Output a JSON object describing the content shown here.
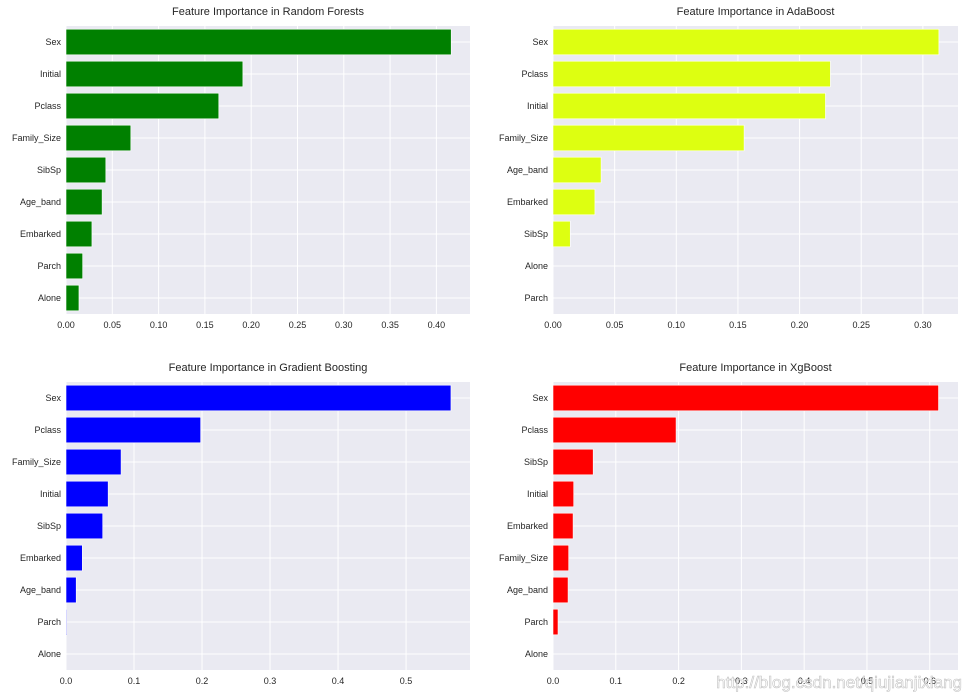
{
  "figure": {
    "watermark": "http://blog.csdn.net/qiujianjixiang"
  },
  "style": {
    "axes_bg": "#EAEAF2",
    "grid_color": "#FFFFFF",
    "text_color": "#262626",
    "bar_edge": "#FFFFFF"
  },
  "chart_data": [
    {
      "type": "bar",
      "orientation": "horizontal",
      "title": "Feature Importance in Random Forests",
      "categories": [
        "Sex",
        "Initial",
        "Pclass",
        "Family_Size",
        "SibSp",
        "Age_band",
        "Embarked",
        "Parch",
        "Alone"
      ],
      "values": [
        0.416,
        0.191,
        0.165,
        0.07,
        0.043,
        0.039,
        0.028,
        0.018,
        0.014
      ],
      "xlim": [
        0,
        0.4363
      ],
      "xticks": [
        "0.00",
        "0.05",
        "0.10",
        "0.15",
        "0.20",
        "0.25",
        "0.30",
        "0.35",
        "0.40"
      ],
      "color": "#008000",
      "grid": true
    },
    {
      "type": "bar",
      "orientation": "horizontal",
      "title": "Feature Importance in AdaBoost",
      "categories": [
        "Sex",
        "Pclass",
        "Initial",
        "Family_Size",
        "Age_band",
        "Embarked",
        "SibSp",
        "Alone",
        "Parch"
      ],
      "values": [
        0.313,
        0.225,
        0.221,
        0.155,
        0.039,
        0.034,
        0.014,
        0.0,
        0.0
      ],
      "xlim": [
        0,
        0.3285
      ],
      "xticks": [
        "0.00",
        "0.05",
        "0.10",
        "0.15",
        "0.20",
        "0.25",
        "0.30"
      ],
      "color": "#DDFF11",
      "grid": true
    },
    {
      "type": "bar",
      "orientation": "horizontal",
      "title": "Feature Importance in Gradient Boosting",
      "categories": [
        "Sex",
        "Pclass",
        "Family_Size",
        "Initial",
        "SibSp",
        "Embarked",
        "Age_band",
        "Parch",
        "Alone"
      ],
      "values": [
        0.566,
        0.198,
        0.081,
        0.062,
        0.054,
        0.024,
        0.015,
        0.001,
        0.0
      ],
      "xlim": [
        0,
        0.594
      ],
      "xticks": [
        "0.0",
        "0.1",
        "0.2",
        "0.3",
        "0.4",
        "0.5"
      ],
      "color": "#0000FF",
      "grid": true
    },
    {
      "type": "bar",
      "orientation": "horizontal",
      "title": "Feature Importance in XgBoost",
      "categories": [
        "Sex",
        "Pclass",
        "SibSp",
        "Initial",
        "Embarked",
        "Family_Size",
        "Age_band",
        "Parch",
        "Alone"
      ],
      "values": [
        0.614,
        0.196,
        0.064,
        0.033,
        0.032,
        0.025,
        0.024,
        0.008,
        0.0
      ],
      "xlim": [
        0,
        0.645
      ],
      "xticks": [
        "0.0",
        "0.1",
        "0.2",
        "0.3",
        "0.4",
        "0.5",
        "0.6"
      ],
      "color": "#FF0000",
      "grid": true
    }
  ]
}
